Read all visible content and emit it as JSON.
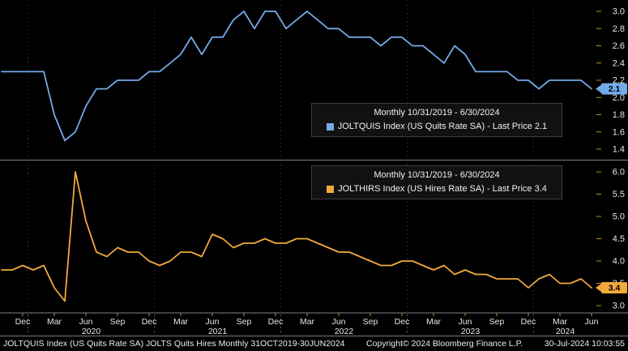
{
  "colors": {
    "background": "#000000",
    "axis_text": "#e6e6e6",
    "tick_mark": "#c38a2d",
    "divider": "#808080",
    "grid": "#3c4c60",
    "year_divider": "#55667a"
  },
  "chart_data": {
    "type": "line",
    "title": "JOLTS Quits Hires",
    "x": [
      "2019-10",
      "2019-11",
      "2019-12",
      "2020-01",
      "2020-02",
      "2020-03",
      "2020-04",
      "2020-05",
      "2020-06",
      "2020-07",
      "2020-08",
      "2020-09",
      "2020-10",
      "2020-11",
      "2020-12",
      "2021-01",
      "2021-02",
      "2021-03",
      "2021-04",
      "2021-05",
      "2021-06",
      "2021-07",
      "2021-08",
      "2021-09",
      "2021-10",
      "2021-11",
      "2021-12",
      "2022-01",
      "2022-02",
      "2022-03",
      "2022-04",
      "2022-05",
      "2022-06",
      "2022-07",
      "2022-08",
      "2022-09",
      "2022-10",
      "2022-11",
      "2022-12",
      "2023-01",
      "2023-02",
      "2023-03",
      "2023-04",
      "2023-05",
      "2023-06",
      "2023-07",
      "2023-08",
      "2023-09",
      "2023-10",
      "2023-11",
      "2023-12",
      "2024-01",
      "2024-02",
      "2024-03",
      "2024-04",
      "2024-05",
      "2024-06"
    ],
    "series": [
      {
        "name": "quits",
        "legend_title": "Monthly 10/31/2019 - 6/30/2024",
        "legend_label": "JOLTQUIS Index (US Quits Rate SA) - Last Price 2.1",
        "last_price": "2.1",
        "color": "#73a9e6",
        "panel": 0,
        "ylim": [
          1.4,
          3.0
        ],
        "yticks": [
          "3.0",
          "2.8",
          "2.6",
          "2.4",
          "2.2",
          "2.0",
          "1.8",
          "1.6",
          "1.4"
        ],
        "values": [
          2.3,
          2.3,
          2.3,
          2.3,
          2.3,
          1.8,
          1.5,
          1.6,
          1.9,
          2.1,
          2.1,
          2.2,
          2.2,
          2.2,
          2.3,
          2.3,
          2.4,
          2.5,
          2.7,
          2.5,
          2.7,
          2.7,
          2.9,
          3.0,
          2.8,
          3.0,
          3.0,
          2.8,
          2.9,
          3.0,
          2.9,
          2.8,
          2.8,
          2.7,
          2.7,
          2.7,
          2.6,
          2.7,
          2.7,
          2.6,
          2.6,
          2.5,
          2.4,
          2.6,
          2.5,
          2.3,
          2.3,
          2.3,
          2.3,
          2.2,
          2.2,
          2.1,
          2.2,
          2.2,
          2.2,
          2.2,
          2.1
        ]
      },
      {
        "name": "hires",
        "legend_title": "Monthly 10/31/2019 - 6/30/2024",
        "legend_label": "JOLTHIRS Index (US Hires Rate SA) - Last Price 3.4",
        "last_price": "3.4",
        "color": "#f2a93c",
        "panel": 1,
        "ylim": [
          3.0,
          6.0
        ],
        "yticks": [
          "6.0",
          "5.5",
          "5.0",
          "4.5",
          "4.0",
          "3.5",
          "3.0"
        ],
        "values": [
          3.8,
          3.8,
          3.9,
          3.8,
          3.9,
          3.4,
          3.1,
          6.0,
          4.9,
          4.2,
          4.1,
          4.3,
          4.2,
          4.2,
          4.0,
          3.9,
          4.0,
          4.2,
          4.2,
          4.1,
          4.6,
          4.5,
          4.3,
          4.4,
          4.4,
          4.5,
          4.4,
          4.4,
          4.5,
          4.5,
          4.4,
          4.3,
          4.2,
          4.2,
          4.1,
          4.0,
          3.9,
          3.9,
          4.0,
          4.0,
          3.9,
          3.8,
          3.9,
          3.7,
          3.8,
          3.7,
          3.7,
          3.6,
          3.6,
          3.6,
          3.4,
          3.6,
          3.7,
          3.5,
          3.5,
          3.6,
          3.4
        ]
      }
    ],
    "x_tick_indices": [
      2,
      5,
      8,
      11,
      14,
      17,
      20,
      23,
      26,
      29,
      32,
      35,
      38,
      41,
      44,
      47,
      50,
      53,
      56
    ],
    "x_tick_labels": [
      "Dec",
      "Mar",
      "Jun",
      "Sep",
      "Dec",
      "Mar",
      "Jun",
      "Sep",
      "Dec",
      "Mar",
      "Jun",
      "Sep",
      "Dec",
      "Mar",
      "Jun",
      "Sep",
      "Dec",
      "Mar",
      "Jun"
    ],
    "year_labels": [
      "2020",
      "2021",
      "2022",
      "2023",
      "2024"
    ],
    "year_centers": [
      8.5,
      20.5,
      32.5,
      44.5,
      53.5
    ],
    "year_boundaries": [
      2.5,
      14.5,
      26.5,
      38.5,
      50.5
    ]
  },
  "status_bar": {
    "left": "JOLTQUIS Index (US Quits Rate SA) JOLTS Quits Hires Monthly 31OCT2019-30JUN2024",
    "copyright": "Copyright© 2024 Bloomberg Finance L.P.",
    "timestamp": "30-Jul-2024 10:03:55"
  }
}
